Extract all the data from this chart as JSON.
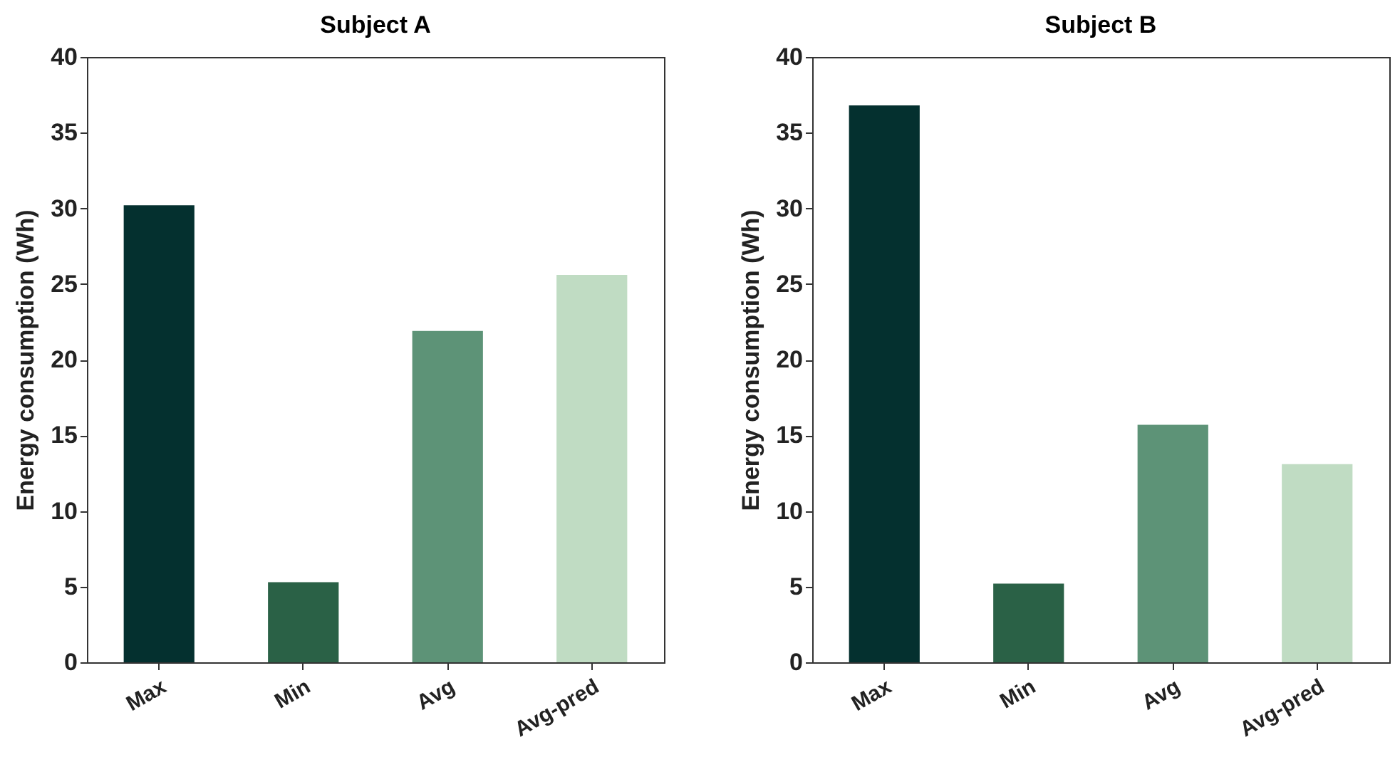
{
  "chart_data": [
    {
      "type": "bar",
      "title": "Subject A",
      "ylabel": "Energy consumption (Wh)",
      "categories": [
        "Max",
        "Min",
        "Avg",
        "Avg-pred"
      ],
      "values": [
        30.2,
        5.3,
        21.9,
        25.6
      ],
      "colors": [
        "#04302f",
        "#2a6146",
        "#5d9377",
        "#c0dcc3"
      ],
      "ylim": [
        0,
        40
      ],
      "yticks": [
        0,
        5,
        10,
        15,
        20,
        25,
        30,
        35,
        40
      ]
    },
    {
      "type": "bar",
      "title": "Subject B",
      "ylabel": "Energy consumption (Wh)",
      "categories": [
        "Max",
        "Min",
        "Avg",
        "Avg-pred"
      ],
      "values": [
        36.8,
        5.2,
        15.7,
        13.1
      ],
      "colors": [
        "#04302f",
        "#2a6146",
        "#5d9377",
        "#c0dcc3"
      ],
      "ylim": [
        0,
        40
      ],
      "yticks": [
        0,
        5,
        10,
        15,
        20,
        25,
        30,
        35,
        40
      ]
    }
  ]
}
